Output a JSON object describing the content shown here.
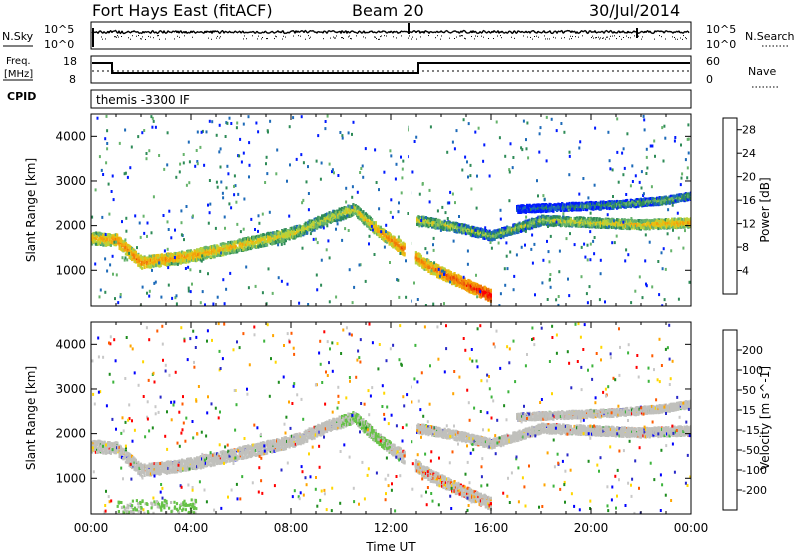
{
  "header": {
    "station": "Fort Hays East (fitACF)",
    "beam": "Beam 20",
    "date": "30/Jul/2014"
  },
  "panels": {
    "nsky": {
      "left_label": "N.Sky",
      "right_label": "N.Search",
      "left_ticks": [
        "10^5",
        "10^0"
      ],
      "right_ticks": [
        "10^5",
        "10^0"
      ]
    },
    "freq": {
      "left_label_1": "Freq.",
      "left_label_2": "[MHz]",
      "left_ticks": [
        "18",
        "8"
      ],
      "right_label": "Nave",
      "right_ticks": [
        "60",
        "0"
      ]
    },
    "cpid": {
      "label": "CPID",
      "program": "themis -3300 IF"
    }
  },
  "colors": {
    "power_scale": [
      "#0019ff",
      "#1d6ab8",
      "#2e8b57",
      "#66b36b",
      "#b8d23a",
      "#e9c012",
      "#f5a00a",
      "#f07a08",
      "#e8460a",
      "#ff0000"
    ],
    "velocity_scale": [
      "#ff0000",
      "#ff5a00",
      "#ffa500",
      "#ffd700",
      "#c8c8c8",
      "#c8c8c8",
      "#3cb43c",
      "#1e8c1e",
      "#2828c8",
      "#0000ff"
    ],
    "ground_scatter": "#c0c0bc"
  },
  "chart_data": [
    {
      "type": "heatmap",
      "title": "Power",
      "ylabel": "Slant Range [km]",
      "xlabel": "",
      "y_ticks": [
        "1000",
        "2000",
        "3000",
        "4000"
      ],
      "ylim": [
        200,
        4500
      ],
      "xlim_hours": [
        0,
        24
      ],
      "colorbar_label": "Power [dB]",
      "colorbar_ticks": [
        "4",
        "8",
        "12",
        "16",
        "20",
        "24",
        "28"
      ],
      "colorbar_range": [
        0,
        30
      ],
      "echo_bands": [
        {
          "name": "main",
          "points": [
            [
              0,
              1750,
              18
            ],
            [
              1,
              1700,
              22
            ],
            [
              2,
              1200,
              22
            ],
            [
              4,
              1350,
              20
            ],
            [
              6,
              1600,
              18
            ],
            [
              8,
              1850,
              16
            ],
            [
              9.5,
              2200,
              14
            ],
            [
              10.5,
              2400,
              16
            ],
            [
              11.5,
              1900,
              20
            ],
            [
              12.5,
              1500,
              24
            ],
            [
              13.5,
              1100,
              22
            ],
            [
              15,
              700,
              26
            ],
            [
              16,
              450,
              30
            ]
          ]
        },
        {
          "name": "upper",
          "points": [
            [
              13,
              2150,
              16
            ],
            [
              14.5,
              2000,
              14
            ],
            [
              16,
              1800,
              12
            ],
            [
              18,
              2150,
              14
            ],
            [
              20,
              2100,
              16
            ],
            [
              22,
              2050,
              18
            ],
            [
              24,
              2100,
              20
            ]
          ]
        },
        {
          "name": "far",
          "points": [
            [
              17,
              2400,
              6
            ],
            [
              19,
              2450,
              8
            ],
            [
              21,
              2500,
              10
            ],
            [
              23,
              2600,
              12
            ],
            [
              24,
              2700,
              10
            ]
          ]
        }
      ]
    },
    {
      "type": "heatmap",
      "title": "Velocity",
      "ylabel": "Slant Range [km]",
      "xlabel": "Time UT",
      "x_ticks": [
        "00:00",
        "04:00",
        "08:00",
        "12:00",
        "16:00",
        "20:00",
        "00:00"
      ],
      "y_ticks": [
        "1000",
        "2000",
        "3000",
        "4000"
      ],
      "ylim": [
        200,
        4500
      ],
      "xlim_hours": [
        0,
        24
      ],
      "colorbar_label": "Velocity [m s^-1]",
      "colorbar_ticks": [
        "200",
        "100",
        "50",
        "15",
        "-15",
        "-50",
        "-100",
        "-200"
      ],
      "colorbar_range": [
        -250,
        250
      ],
      "notes_ground_scatter": "grey"
    }
  ]
}
